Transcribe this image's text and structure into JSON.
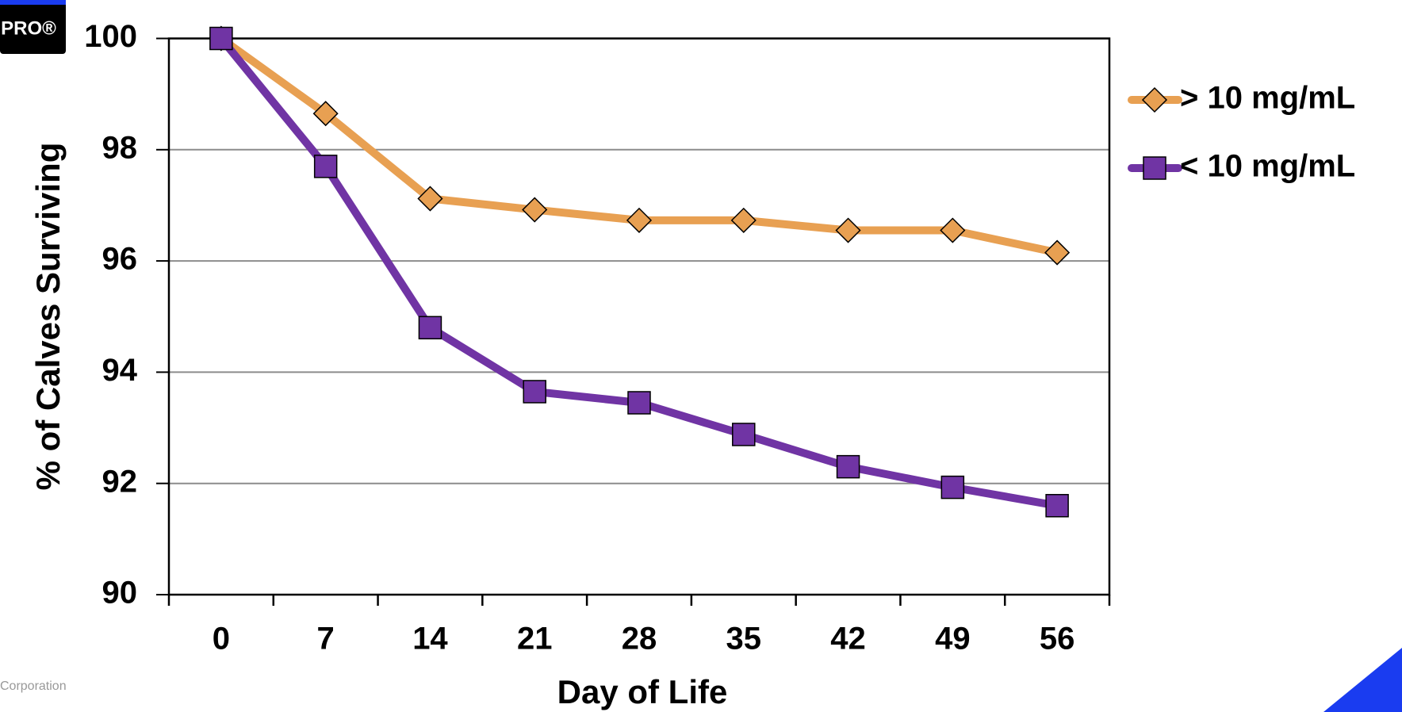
{
  "page": {
    "logo": "PRO®",
    "footer": "Corporation"
  },
  "chart_data": {
    "type": "line",
    "x_label": "Day of Life",
    "y_label": "% of Calves Surviving",
    "categories": [
      "0",
      "7",
      "14",
      "21",
      "28",
      "35",
      "42",
      "49",
      "56"
    ],
    "series": [
      {
        "name": "> 10 mg/mL",
        "color": "#E8A052",
        "marker": "diamond",
        "values": [
          100,
          98.65,
          97.12,
          96.92,
          96.73,
          96.73,
          96.55,
          96.55,
          96.15
        ]
      },
      {
        "name": "< 10 mg/mL",
        "color": "#7034A4",
        "marker": "square",
        "values": [
          100,
          97.7,
          94.8,
          93.65,
          93.45,
          92.88,
          92.3,
          91.93,
          91.6
        ]
      }
    ],
    "ylim": [
      90,
      100
    ],
    "yticks": [
      90,
      92,
      94,
      96,
      98,
      100
    ],
    "grid": true,
    "legend": "right"
  }
}
